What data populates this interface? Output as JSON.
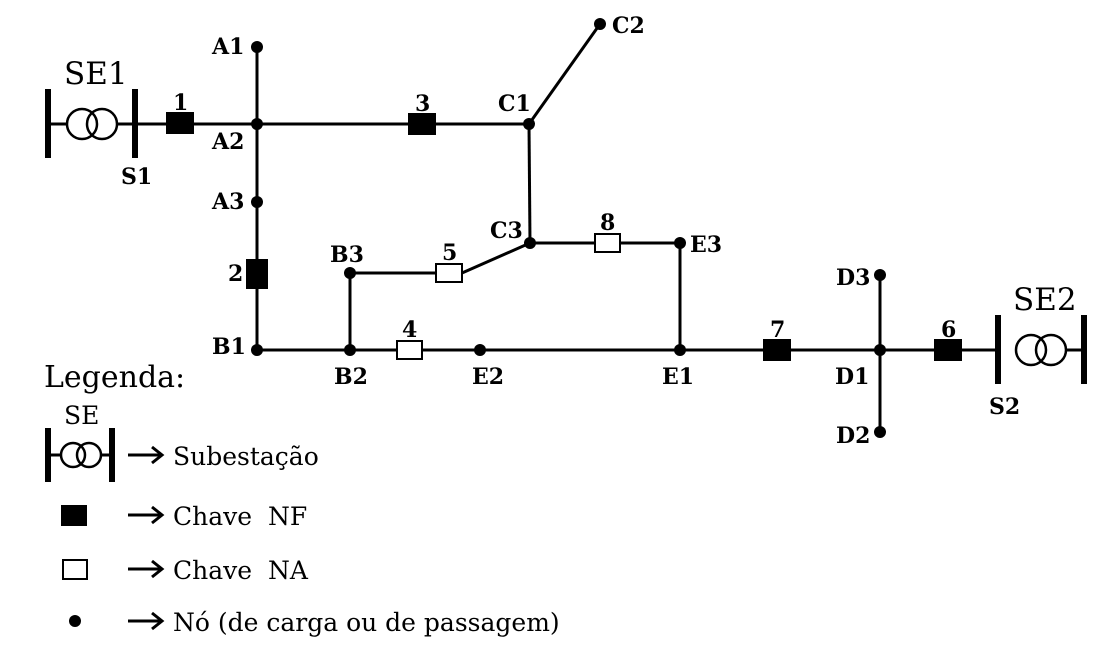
{
  "substations": [
    {
      "id": "SE1",
      "label": "SE1",
      "bus_label": "S1"
    },
    {
      "id": "SE2",
      "label": "SE2",
      "bus_label": "S2"
    }
  ],
  "nodes": [
    "A1",
    "A2",
    "A3",
    "B1",
    "B2",
    "B3",
    "C1",
    "C2",
    "C3",
    "D1",
    "D2",
    "D3",
    "E1",
    "E2",
    "E3"
  ],
  "switches": [
    {
      "label": "1",
      "state": "NF"
    },
    {
      "label": "2",
      "state": "NF"
    },
    {
      "label": "3",
      "state": "NF"
    },
    {
      "label": "4",
      "state": "NA"
    },
    {
      "label": "5",
      "state": "NA"
    },
    {
      "label": "6",
      "state": "NF"
    },
    {
      "label": "7",
      "state": "NF"
    },
    {
      "label": "8",
      "state": "NA"
    }
  ],
  "legend": {
    "title": "Legenda:",
    "items": [
      {
        "symbol_label": "SE",
        "text": "Subestação"
      },
      {
        "text": "Chave  NF"
      },
      {
        "text": "Chave  NA"
      },
      {
        "text": "Nó (de carga ou de passagem)"
      }
    ]
  }
}
